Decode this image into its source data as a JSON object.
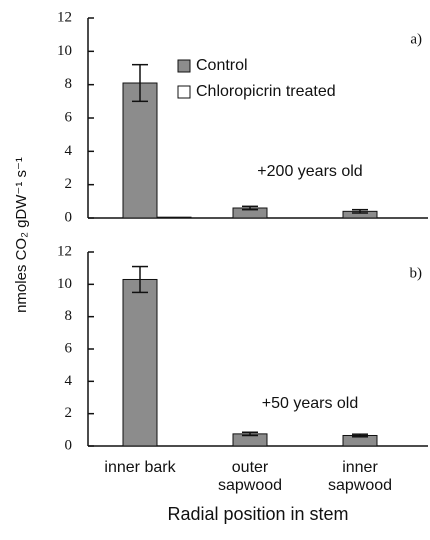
{
  "chart_data": [
    {
      "type": "bar",
      "annotation": "a)",
      "subtitle": "+200 years old",
      "ylabel": "nmoles CO₂ gDW⁻¹ s⁻¹",
      "categories": [
        "inner bark",
        "outer\nsapwood",
        "inner\nsapwood"
      ],
      "series": [
        {
          "name": "Control",
          "color": "#8c8c8c",
          "values": [
            8.1,
            0.6,
            0.4
          ],
          "errors": [
            1.1,
            0.1,
            0.1
          ]
        },
        {
          "name": "Chloropicrin treated",
          "color": "#ffffff",
          "values": [
            0.05,
            null,
            null
          ]
        }
      ],
      "ylim": [
        0,
        12
      ],
      "yticks": [
        0,
        2,
        4,
        6,
        8,
        10,
        12
      ],
      "legend": "upper center"
    },
    {
      "type": "bar",
      "annotation": "b)",
      "subtitle": "+50 years old",
      "xlabel": "Radial position in stem",
      "categories": [
        "inner bark",
        "outer\nsapwood",
        "inner\nsapwood"
      ],
      "series": [
        {
          "name": "Control",
          "color": "#8c8c8c",
          "values": [
            10.3,
            0.75,
            0.65
          ],
          "errors": [
            0.8,
            0.1,
            0.08
          ]
        }
      ],
      "ylim": [
        0,
        12
      ],
      "yticks": [
        0,
        2,
        4,
        6,
        8,
        10,
        12
      ]
    }
  ]
}
